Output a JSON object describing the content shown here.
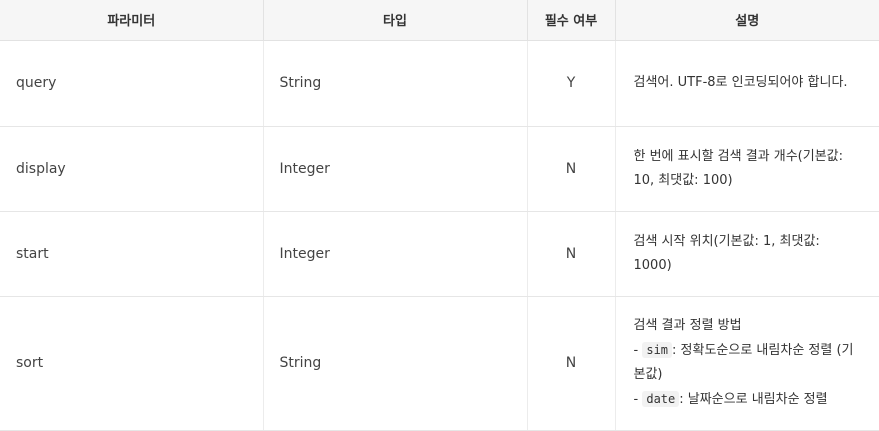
{
  "headers": [
    "파라미터",
    "타입",
    "필수 여부",
    "설명"
  ],
  "rows": [
    {
      "param": "query",
      "type": "String",
      "required": "Y",
      "desc": "검색어. UTF-8로 인코딩되어야 합니다."
    },
    {
      "param": "display",
      "type": "Integer",
      "required": "N",
      "desc": "한 번에 표시할 검색 결과 개수(기본값: 10, 최댓값: 100)"
    },
    {
      "param": "start",
      "type": "Integer",
      "required": "N",
      "desc": "검색 시작 위치(기본값: 1, 최댓값: 1000)"
    },
    {
      "param": "sort",
      "type": "String",
      "required": "N",
      "desc_title": "검색 결과 정렬 방법",
      "opt1_dash": "-",
      "opt1_code": "sim",
      "opt1_text": ": 정확도순으로 내림차순 정렬 (기본값)",
      "opt2_dash": "-",
      "opt2_code": "date",
      "opt2_text": ": 날짜순으로 내림차순 정렬"
    }
  ]
}
